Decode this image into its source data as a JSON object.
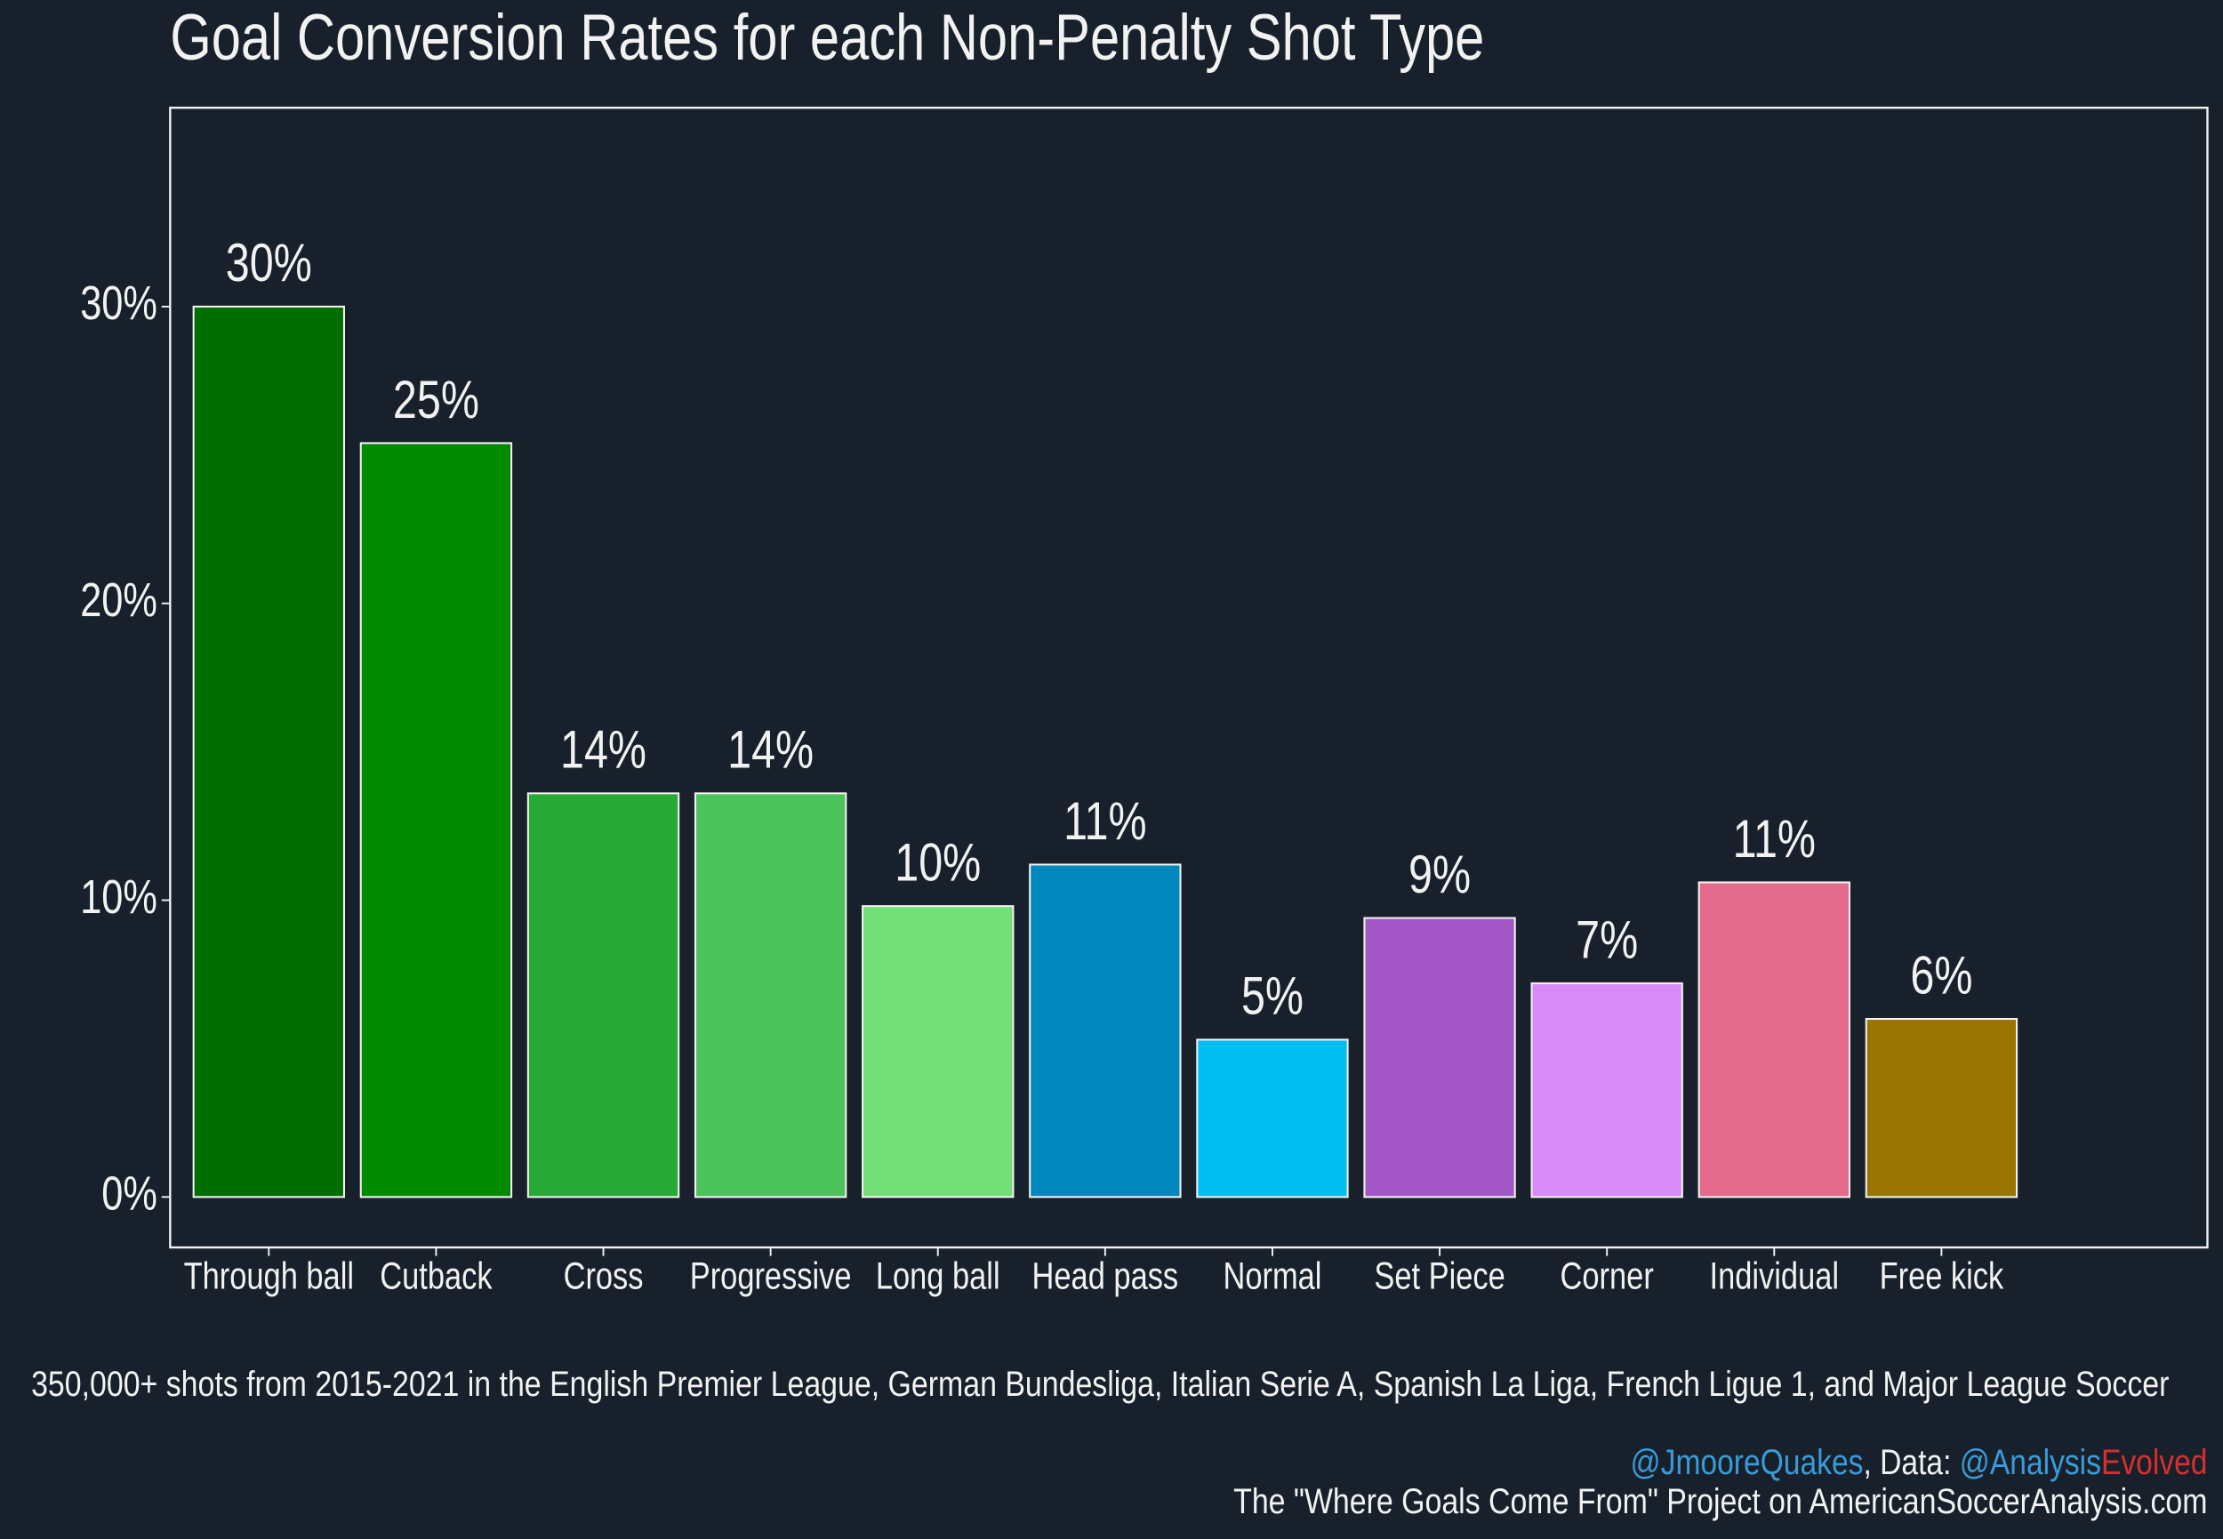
{
  "chart_data": {
    "type": "bar",
    "title": "Goal Conversion Rates for each Non-Penalty Shot Type",
    "categories": [
      "Through ball",
      "Cutback",
      "Cross",
      "Progressive",
      "Long ball",
      "Head pass",
      "Normal",
      "Set Piece",
      "Corner",
      "Individual",
      "Free kick"
    ],
    "values": [
      30.0,
      25.4,
      13.6,
      13.6,
      9.8,
      11.2,
      5.3,
      9.4,
      7.2,
      10.6,
      6.0
    ],
    "value_labels": [
      "30%",
      "25%",
      "14%",
      "14%",
      "10%",
      "11%",
      "5%",
      "9%",
      "7%",
      "11%",
      "6%"
    ],
    "colors": [
      "#006e00",
      "#008a00",
      "#27a935",
      "#4cc25a",
      "#72df78",
      "#0088be",
      "#00bdf2",
      "#a356c6",
      "#d88af6",
      "#e36a8c",
      "#9a7400"
    ],
    "ylim": [
      -1.7,
      36.7
    ],
    "yticks": [
      {
        "value": 0,
        "label": "0%"
      },
      {
        "value": 10,
        "label": "10%"
      },
      {
        "value": 20,
        "label": "20%"
      },
      {
        "value": 30,
        "label": "30%"
      }
    ],
    "caption": "350,000+ shots from 2015-2021 in the English Premier League, German Bundesliga, Italian Serie A, Spanish La Liga, French Ligue 1, and Major League Soccer",
    "credits": {
      "handle": "@JmooreQuakes",
      "data_prefix": ", Data: ",
      "source_a": "@Analysis",
      "source_b": "Evolved",
      "project": "The \"Where Goals Come From\" Project on AmericanSoccerAnalysis.com"
    }
  }
}
